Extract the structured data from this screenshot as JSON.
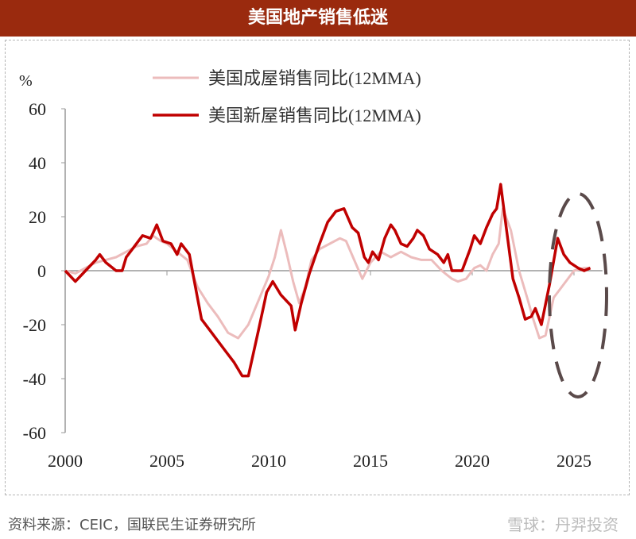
{
  "title": "美国地产销售低迷",
  "chart_data": {
    "type": "line",
    "ylabel": "%",
    "ylim": [
      -60,
      60
    ],
    "xlim": [
      2000,
      2026.5
    ],
    "yticks": [
      60,
      40,
      20,
      0,
      -20,
      -40,
      -60
    ],
    "xticks": [
      2000,
      2005,
      2010,
      2015,
      2020,
      2025
    ],
    "legend_position": "top",
    "series": [
      {
        "name": "美国成屋销售同比(12MMA)",
        "color": "#ecbcbc",
        "points": [
          [
            2000,
            0
          ],
          [
            2000.5,
            -1
          ],
          [
            2001,
            1
          ],
          [
            2001.5,
            3
          ],
          [
            2002,
            4
          ],
          [
            2002.5,
            5
          ],
          [
            2003,
            7
          ],
          [
            2003.5,
            9
          ],
          [
            2004,
            10
          ],
          [
            2004.3,
            13
          ],
          [
            2004.7,
            11
          ],
          [
            2005,
            10
          ],
          [
            2005.5,
            7
          ],
          [
            2006,
            4
          ],
          [
            2006.5,
            -6
          ],
          [
            2007,
            -12
          ],
          [
            2007.5,
            -17
          ],
          [
            2008,
            -23
          ],
          [
            2008.5,
            -25
          ],
          [
            2009,
            -20
          ],
          [
            2009.5,
            -11
          ],
          [
            2010,
            -2
          ],
          [
            2010.3,
            5
          ],
          [
            2010.6,
            15
          ],
          [
            2010.9,
            6
          ],
          [
            2011.2,
            -4
          ],
          [
            2011.5,
            -12
          ],
          [
            2011.8,
            -6
          ],
          [
            2012.1,
            4
          ],
          [
            2012.5,
            8
          ],
          [
            2013,
            10
          ],
          [
            2013.5,
            12
          ],
          [
            2013.8,
            11
          ],
          [
            2014.2,
            4
          ],
          [
            2014.6,
            -3
          ],
          [
            2015,
            3
          ],
          [
            2015.5,
            7
          ],
          [
            2016,
            5
          ],
          [
            2016.5,
            7
          ],
          [
            2017,
            5
          ],
          [
            2017.5,
            4
          ],
          [
            2018,
            4
          ],
          [
            2018.5,
            0
          ],
          [
            2019,
            -3
          ],
          [
            2019.3,
            -4
          ],
          [
            2019.7,
            -3
          ],
          [
            2020.1,
            1
          ],
          [
            2020.4,
            2
          ],
          [
            2020.7,
            0
          ],
          [
            2021,
            6
          ],
          [
            2021.3,
            10
          ],
          [
            2021.5,
            23
          ],
          [
            2021.9,
            15
          ],
          [
            2022.3,
            0
          ],
          [
            2022.7,
            -10
          ],
          [
            2023,
            -18
          ],
          [
            2023.3,
            -25
          ],
          [
            2023.6,
            -24
          ],
          [
            2024,
            -10
          ],
          [
            2024.5,
            -5
          ],
          [
            2025,
            0
          ],
          [
            2025.5,
            1
          ],
          [
            2025.8,
            1
          ]
        ]
      },
      {
        "name": "美国新屋销售同比(12MMA)",
        "color": "#c00000",
        "points": [
          [
            2000,
            0
          ],
          [
            2000.5,
            -4
          ],
          [
            2001,
            0
          ],
          [
            2001.5,
            4
          ],
          [
            2001.7,
            6
          ],
          [
            2002,
            3
          ],
          [
            2002.5,
            0
          ],
          [
            2002.8,
            0
          ],
          [
            2003,
            5
          ],
          [
            2003.3,
            8
          ],
          [
            2003.6,
            11
          ],
          [
            2003.8,
            13
          ],
          [
            2004.2,
            12
          ],
          [
            2004.5,
            17
          ],
          [
            2004.8,
            11
          ],
          [
            2005.2,
            10
          ],
          [
            2005.5,
            6
          ],
          [
            2005.7,
            10
          ],
          [
            2006.1,
            6
          ],
          [
            2006.4,
            -6
          ],
          [
            2006.7,
            -18
          ],
          [
            2007.1,
            -22
          ],
          [
            2007.5,
            -26
          ],
          [
            2007.9,
            -30
          ],
          [
            2008.3,
            -34
          ],
          [
            2008.7,
            -39
          ],
          [
            2009,
            -39
          ],
          [
            2009.5,
            -22
          ],
          [
            2009.9,
            -8
          ],
          [
            2010.2,
            -4
          ],
          [
            2010.6,
            -9
          ],
          [
            2011.1,
            -13
          ],
          [
            2011.3,
            -22
          ],
          [
            2011.6,
            -12
          ],
          [
            2012,
            -1
          ],
          [
            2012.5,
            10
          ],
          [
            2012.9,
            18
          ],
          [
            2013.3,
            22
          ],
          [
            2013.7,
            23
          ],
          [
            2014.1,
            16
          ],
          [
            2014.4,
            14
          ],
          [
            2014.7,
            5
          ],
          [
            2014.9,
            3
          ],
          [
            2015.1,
            7
          ],
          [
            2015.4,
            4
          ],
          [
            2015.7,
            12
          ],
          [
            2016,
            17
          ],
          [
            2016.2,
            15
          ],
          [
            2016.5,
            10
          ],
          [
            2016.8,
            9
          ],
          [
            2017.1,
            12
          ],
          [
            2017.3,
            15
          ],
          [
            2017.6,
            13
          ],
          [
            2017.9,
            8
          ],
          [
            2018.3,
            6
          ],
          [
            2018.6,
            3
          ],
          [
            2018.8,
            6
          ],
          [
            2019,
            0
          ],
          [
            2019.5,
            0
          ],
          [
            2019.9,
            8
          ],
          [
            2020.1,
            13
          ],
          [
            2020.4,
            10
          ],
          [
            2020.7,
            16
          ],
          [
            2021,
            21
          ],
          [
            2021.2,
            23
          ],
          [
            2021.4,
            32
          ],
          [
            2021.6,
            20
          ],
          [
            2022,
            -3
          ],
          [
            2022.3,
            -10
          ],
          [
            2022.6,
            -18
          ],
          [
            2022.9,
            -17
          ],
          [
            2023.1,
            -14
          ],
          [
            2023.4,
            -20
          ],
          [
            2023.8,
            -5
          ],
          [
            2024.2,
            12
          ],
          [
            2024.5,
            6
          ],
          [
            2024.8,
            3
          ],
          [
            2025.2,
            1
          ],
          [
            2025.5,
            0
          ],
          [
            2025.8,
            1
          ]
        ]
      }
    ],
    "annotation": "dashed ellipse highlighting 2024-2025"
  },
  "footer": {
    "source": "资料来源：CEIC，国联民生证券研究所",
    "watermark": "雪球：丹羿投资"
  }
}
